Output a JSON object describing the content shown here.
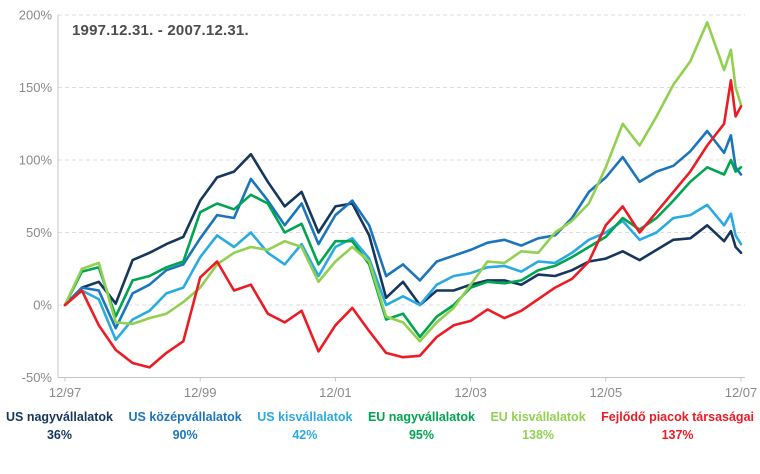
{
  "title": "1997.12.31. - 2007.12.31.",
  "colors": {
    "title_text": "#4d4d4d",
    "axis_text": "#8a8a8a",
    "axis_line": "#c6c6c6",
    "gridline": "#dddddd",
    "background": "#ffffff"
  },
  "legend": [
    {
      "label": "US nagyvállalatok",
      "value": "36%",
      "color": "#17365d"
    },
    {
      "label": "US középvállalatok",
      "value": "90%",
      "color": "#1b75bc"
    },
    {
      "label": "US kisvállalatok",
      "value": "42%",
      "color": "#29abe2"
    },
    {
      "label": "EU nagyvállalatok",
      "value": "95%",
      "color": "#00a550"
    },
    {
      "label": "EU kisvállalatok",
      "value": "138%",
      "color": "#92d050"
    },
    {
      "label": "Fejlődő piacok társaságai",
      "value": "137%",
      "color": "#ec1c24"
    }
  ],
  "chart_data": {
    "type": "line",
    "title": "1997.12.31. - 2007.12.31.",
    "x_unit": "years since 1997-12-31 (quarterly samples, extra points late 2007)",
    "x": [
      0,
      0.25,
      0.5,
      0.75,
      1,
      1.25,
      1.5,
      1.75,
      2,
      2.25,
      2.5,
      2.75,
      3,
      3.25,
      3.5,
      3.75,
      4,
      4.25,
      4.5,
      4.75,
      5,
      5.25,
      5.5,
      5.75,
      6,
      6.25,
      6.5,
      6.75,
      7,
      7.25,
      7.5,
      7.75,
      8,
      8.25,
      8.5,
      8.75,
      9,
      9.25,
      9.5,
      9.75,
      9.85,
      9.92,
      10
    ],
    "x_tick_positions": [
      0,
      2,
      4,
      6,
      8,
      10
    ],
    "x_tick_labels": [
      "12/97",
      "12/99",
      "12/01",
      "12/03",
      "12/05",
      "12/07"
    ],
    "ylim": [
      -50,
      200
    ],
    "y_ticks": [
      200,
      150,
      100,
      50,
      0,
      -50
    ],
    "y_tick_labels": [
      "200%",
      "150%",
      "100%",
      "50%",
      "0%",
      "-50%"
    ],
    "y_unit": "percent cumulative return",
    "grid": true,
    "legend_position": "bottom",
    "series": [
      {
        "name": "US nagyvállalatok",
        "slug": "us-large",
        "color": "#17365d",
        "final_value": "36%",
        "values": [
          0,
          12,
          16,
          1,
          31,
          36,
          42,
          47,
          72,
          88,
          92,
          104,
          85,
          68,
          78,
          50,
          68,
          70,
          48,
          5,
          16,
          0,
          10,
          10,
          14,
          17,
          17,
          14,
          21,
          20,
          24,
          30,
          32,
          37,
          31,
          38,
          45,
          46,
          55,
          44,
          51,
          40,
          36
        ]
      },
      {
        "name": "US középvállalatok",
        "slug": "us-mid",
        "color": "#1b75bc",
        "final_value": "90%",
        "values": [
          0,
          12,
          10,
          -16,
          8,
          14,
          24,
          28,
          46,
          62,
          60,
          87,
          72,
          55,
          70,
          42,
          62,
          72,
          55,
          20,
          28,
          17,
          30,
          34,
          38,
          43,
          45,
          41,
          46,
          48,
          60,
          78,
          88,
          102,
          85,
          92,
          96,
          106,
          120,
          105,
          117,
          95,
          90
        ]
      },
      {
        "name": "US kisvállalatok",
        "slug": "us-small",
        "color": "#29abe2",
        "final_value": "42%",
        "values": [
          0,
          10,
          4,
          -24,
          -10,
          -4,
          8,
          12,
          33,
          48,
          40,
          50,
          36,
          28,
          42,
          20,
          40,
          46,
          32,
          0,
          6,
          0,
          14,
          20,
          22,
          26,
          27,
          23,
          30,
          29,
          36,
          45,
          50,
          58,
          45,
          50,
          60,
          62,
          69,
          55,
          63,
          48,
          42
        ]
      },
      {
        "name": "EU nagyvállalatok",
        "slug": "eu-large",
        "color": "#00a550",
        "final_value": "95%",
        "values": [
          0,
          23,
          26,
          -8,
          17,
          20,
          26,
          30,
          64,
          70,
          66,
          76,
          70,
          50,
          56,
          28,
          44,
          44,
          28,
          -10,
          -6,
          -22,
          -8,
          0,
          12,
          16,
          15,
          17,
          24,
          27,
          33,
          40,
          47,
          60,
          52,
          60,
          72,
          85,
          95,
          90,
          100,
          92,
          95
        ]
      },
      {
        "name": "EU kisvállalatok",
        "slug": "eu-small",
        "color": "#92d050",
        "final_value": "138%",
        "values": [
          0,
          25,
          29,
          -12,
          -13,
          -9,
          -6,
          2,
          12,
          28,
          36,
          40,
          38,
          44,
          40,
          16,
          30,
          40,
          30,
          -8,
          -12,
          -25,
          -12,
          -2,
          14,
          30,
          29,
          37,
          36,
          50,
          58,
          70,
          95,
          125,
          110,
          130,
          152,
          168,
          195,
          162,
          176,
          150,
          138
        ]
      },
      {
        "name": "Fejlődő piacok társaságai",
        "slug": "emerging-markets",
        "color": "#ec1c24",
        "final_value": "137%",
        "values": [
          0,
          10,
          -14,
          -31,
          -40,
          -43,
          -33,
          -25,
          19,
          30,
          10,
          14,
          -6,
          -12,
          -4,
          -32,
          -14,
          -2,
          -18,
          -33,
          -36,
          -35,
          -22,
          -14,
          -11,
          -3,
          -9,
          -4,
          4,
          12,
          18,
          30,
          55,
          68,
          50,
          64,
          78,
          92,
          110,
          125,
          155,
          130,
          137
        ]
      }
    ]
  }
}
